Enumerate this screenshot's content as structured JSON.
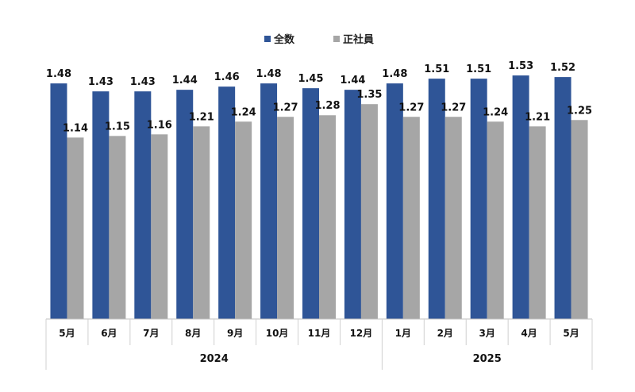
{
  "chart_data": {
    "type": "bar",
    "categories": [
      "5月",
      "6月",
      "7月",
      "8月",
      "9月",
      "10月",
      "11月",
      "12月",
      "1月",
      "2月",
      "3月",
      "4月",
      "5月"
    ],
    "groups": [
      {
        "label": "2024",
        "count": 8
      },
      {
        "label": "2025",
        "count": 5
      }
    ],
    "series": [
      {
        "name": "全数",
        "color": "#2F5597",
        "values": [
          1.48,
          1.43,
          1.43,
          1.44,
          1.46,
          1.48,
          1.45,
          1.44,
          1.48,
          1.51,
          1.51,
          1.53,
          1.52
        ]
      },
      {
        "name": "正社員",
        "color": "#A6A6A6",
        "values": [
          1.14,
          1.15,
          1.16,
          1.21,
          1.24,
          1.27,
          1.28,
          1.35,
          1.27,
          1.27,
          1.24,
          1.21,
          1.25
        ]
      }
    ],
    "ylim": [
      0,
      1.7
    ],
    "grid": false,
    "legend_position": "top-center",
    "data_labels": true
  }
}
